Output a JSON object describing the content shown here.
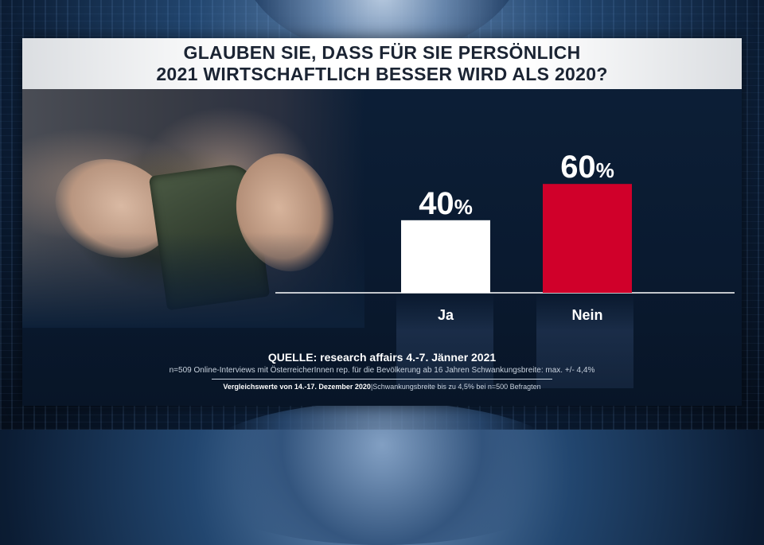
{
  "title": {
    "line1": "GLAUBEN SIE, DASS FÜR SIE PERSÖNLICH",
    "line2": "2021 WIRTSCHAFTLICH BESSER WIRD ALS 2020?"
  },
  "chart_data": {
    "type": "bar",
    "categories": [
      "Ja",
      "Nein"
    ],
    "values": [
      40,
      60
    ],
    "value_labels": [
      "40%",
      "60%"
    ],
    "colors": [
      "#ffffff",
      "#d0002a"
    ],
    "ylim": [
      0,
      100
    ]
  },
  "source": {
    "main": "QUELLE: research affairs 4.-7. Jänner 2021",
    "sub": "n=509 Online-Interviews mit ÖsterreicherInnen rep. für die Bevölkerung ab 16 Jahren  Schwankungsbreite: max. +/- 4,4%",
    "compare_bold": "Vergleichswerte von 14.-17. Dezember 2020",
    "compare_rest": "|Schwankungsbreite bis zu 4,5% bei n=500 Befragten"
  },
  "colors": {
    "panel": "#0d2038",
    "title_text": "#1b2433",
    "ja_bar": "#ffffff",
    "nein_bar": "#d0002a"
  }
}
